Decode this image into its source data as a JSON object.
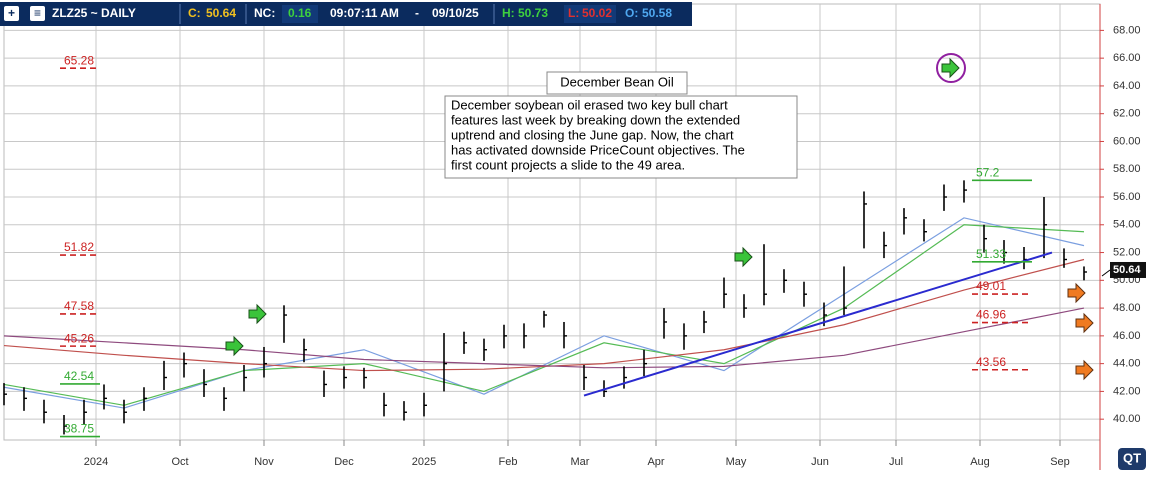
{
  "header": {
    "symbol": "ZLZ25 ~ DAILY",
    "close_label": "C:",
    "close": "50.64",
    "nc_label": "NC:",
    "nc": "0.16",
    "time": "09:07:11 AM",
    "sep": "-",
    "date": "09/10/25",
    "high_label": "H:",
    "high": "50.73",
    "low_label": "L:",
    "low": "50.02",
    "open_label": "O:",
    "open": "50.58"
  },
  "annotation": {
    "title": "December Bean Oil",
    "text": [
      "December soybean oil erased two key bull chart",
      "features last week by breaking down the extended",
      "uptrend and closing the June gap.  Now, the chart",
      "has activated downside PriceCount objectives.  The",
      "first count projects a slide to the 49 area."
    ]
  },
  "chart_data": {
    "type": "ohlc",
    "color": "#000000",
    "x": [
      0,
      5,
      10,
      15,
      20,
      25,
      30,
      35,
      40,
      45,
      50,
      55,
      60,
      65,
      70,
      75,
      80,
      85,
      90,
      95,
      100,
      105,
      110,
      115,
      120,
      125,
      130,
      135,
      140,
      145,
      150,
      155,
      160,
      165,
      170,
      175,
      180,
      185,
      190,
      195,
      200,
      205,
      210,
      215,
      220,
      225,
      230,
      235,
      240,
      245,
      250,
      255,
      260,
      265,
      270
    ],
    "high": [
      42.6,
      42.3,
      41.4,
      40.3,
      41.4,
      42.5,
      41.4,
      42.3,
      44.2,
      44.8,
      43.6,
      42.3,
      43.9,
      45.2,
      48.2,
      45.8,
      43.5,
      43.8,
      43.7,
      41.9,
      41.3,
      41.9,
      46.2,
      46.3,
      45.8,
      46.8,
      46.9,
      47.8,
      47.0,
      43.9,
      42.8,
      43.8,
      45.0,
      48.0,
      46.9,
      47.8,
      50.2,
      49.0,
      52.6,
      50.8,
      49.9,
      48.4,
      51.0,
      56.4,
      53.5,
      55.2,
      54.4,
      56.9,
      57.2,
      54.0,
      52.9,
      52.4,
      56.0,
      52.3,
      51.0
    ],
    "low": [
      41.0,
      40.6,
      39.7,
      38.9,
      39.6,
      40.7,
      39.7,
      40.6,
      42.1,
      43.0,
      41.6,
      40.6,
      42.0,
      43.0,
      45.5,
      44.1,
      41.6,
      42.2,
      42.2,
      40.2,
      39.9,
      40.2,
      42.0,
      44.7,
      44.2,
      45.1,
      45.1,
      46.6,
      45.1,
      42.1,
      41.6,
      42.2,
      43.1,
      45.8,
      45.0,
      46.2,
      48.0,
      47.3,
      48.2,
      49.1,
      48.1,
      46.7,
      47.5,
      52.3,
      51.6,
      53.3,
      52.8,
      55.0,
      55.6,
      52.0,
      51.2,
      50.8,
      51.6,
      50.9,
      50.0
    ],
    "close": [
      41.8,
      41.5,
      40.5,
      39.5,
      40.5,
      41.5,
      40.5,
      41.5,
      43,
      44,
      42.5,
      41.5,
      43,
      44,
      47.5,
      45,
      42.5,
      43,
      43,
      41,
      40.5,
      41,
      44,
      45.5,
      45,
      46,
      46,
      47.5,
      46,
      43,
      42,
      43,
      44,
      47,
      46,
      47,
      49,
      48,
      49,
      50,
      49,
      47.5,
      48,
      55.5,
      52.5,
      54.5,
      53.5,
      56,
      56.5,
      53,
      52,
      51.5,
      54,
      51.5,
      50.6
    ],
    "ma_x": [
      0,
      30,
      60,
      90,
      120,
      150,
      180,
      210,
      240,
      270
    ],
    "moving_averages": [
      {
        "color": "#7b9fe0",
        "values": [
          42.3,
          40.8,
          43.5,
          45.0,
          41.8,
          46.0,
          43.5,
          49.0,
          54.5,
          52.5
        ]
      },
      {
        "color": "#55bb55",
        "values": [
          42.5,
          41.0,
          43.5,
          44.0,
          42.0,
          45.5,
          44.0,
          48.0,
          54.0,
          53.5
        ]
      },
      {
        "color": "#c0504d",
        "values": [
          45.3,
          44.6,
          44.0,
          43.5,
          43.6,
          44.0,
          45.0,
          46.8,
          49.3,
          51.5
        ]
      },
      {
        "color": "#8e4a7e",
        "values": [
          46.0,
          45.5,
          45.0,
          44.3,
          44.0,
          43.7,
          43.8,
          44.6,
          46.3,
          48.0
        ]
      }
    ],
    "trendline": {
      "x": [
        145,
        262
      ],
      "y": [
        41.7,
        52.0
      ],
      "color": "#2a2acf"
    },
    "levels": [
      {
        "value": 65.28,
        "color": "#cc2222",
        "dashed": true,
        "x": [
          14,
          24
        ]
      },
      {
        "value": 51.82,
        "color": "#cc2222",
        "dashed": true,
        "x": [
          14,
          24
        ]
      },
      {
        "value": 47.58,
        "color": "#cc2222",
        "dashed": true,
        "x": [
          14,
          24
        ]
      },
      {
        "value": 45.26,
        "color": "#cc2222",
        "dashed": true,
        "x": [
          14,
          24
        ]
      },
      {
        "value": 42.54,
        "color": "#33aa33",
        "dashed": false,
        "x": [
          14,
          24
        ]
      },
      {
        "value": 38.75,
        "color": "#33aa33",
        "dashed": false,
        "x": [
          14,
          24
        ]
      },
      {
        "value": 57.2,
        "color": "#33aa33",
        "dashed": false,
        "x": [
          242,
          257
        ]
      },
      {
        "value": 51.33,
        "color": "#33aa33",
        "dashed": false,
        "x": [
          242,
          257
        ]
      },
      {
        "value": 49.01,
        "color": "#cc2222",
        "dashed": true,
        "x": [
          242,
          256
        ]
      },
      {
        "value": 46.96,
        "color": "#cc2222",
        "dashed": true,
        "x": [
          242,
          256
        ]
      },
      {
        "value": 43.56,
        "color": "#cc2222",
        "dashed": true,
        "x": [
          242,
          256
        ]
      }
    ],
    "xlim": [
      0,
      274
    ],
    "xticks": [
      {
        "value": 23,
        "label": "2024"
      },
      {
        "value": 44,
        "label": "Oct"
      },
      {
        "value": 65,
        "label": "Nov"
      },
      {
        "value": 85,
        "label": "Dec"
      },
      {
        "value": 105,
        "label": "2025"
      },
      {
        "value": 126,
        "label": "Feb"
      },
      {
        "value": 144,
        "label": "Mar"
      },
      {
        "value": 163,
        "label": "Apr"
      },
      {
        "value": 183,
        "label": "May"
      },
      {
        "value": 204,
        "label": "Jun"
      },
      {
        "value": 223,
        "label": "Jul"
      },
      {
        "value": 244,
        "label": "Aug"
      },
      {
        "value": 264,
        "label": "Sep"
      }
    ],
    "ylim": [
      38.5,
      69.9
    ],
    "yticks": [
      {
        "value": 40,
        "label": "40.00"
      },
      {
        "value": 42,
        "label": "42.00"
      },
      {
        "value": 44,
        "label": "44.00"
      },
      {
        "value": 46,
        "label": "46.00"
      },
      {
        "value": 48,
        "label": "48.00"
      },
      {
        "value": 50,
        "label": "50.00"
      },
      {
        "value": 52,
        "label": "52.00"
      },
      {
        "value": 54,
        "label": "54.00"
      },
      {
        "value": 56,
        "label": "56.00"
      },
      {
        "value": 58,
        "label": "58.00"
      },
      {
        "value": 60,
        "label": "60.00"
      },
      {
        "value": 62,
        "label": "62.00"
      },
      {
        "value": 64,
        "label": "64.00"
      },
      {
        "value": 66,
        "label": "66.00"
      },
      {
        "value": 68,
        "label": "68.00"
      }
    ],
    "grid": true
  }
}
